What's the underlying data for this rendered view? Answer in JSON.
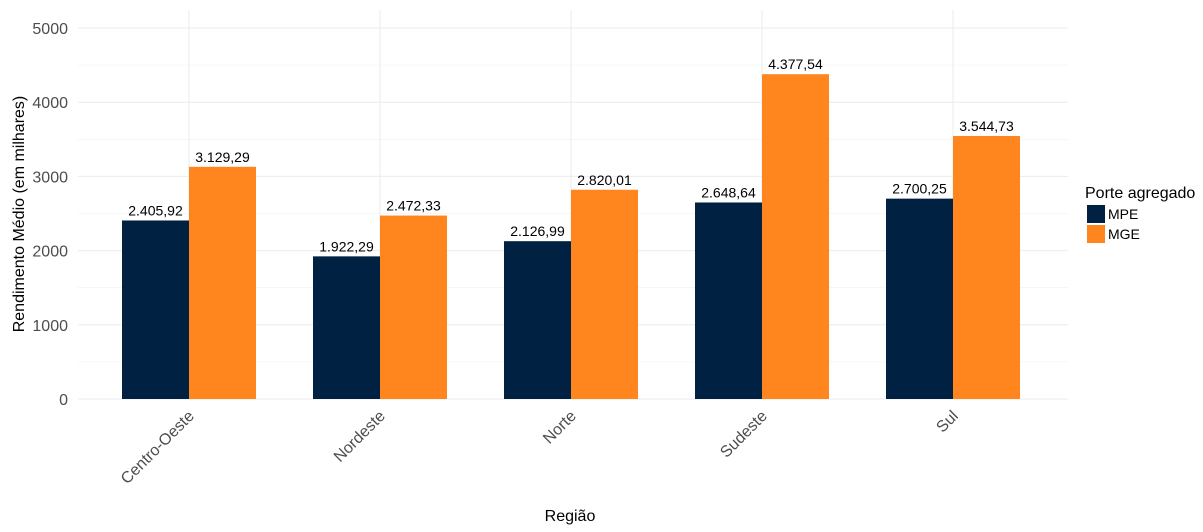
{
  "chart_data": {
    "type": "bar",
    "title": "",
    "xlabel": "Região",
    "ylabel": "Rendimento Médio (em milhares)",
    "ylim": [
      0,
      5000
    ],
    "yticks": [
      0,
      1000,
      2000,
      3000,
      4000,
      5000
    ],
    "grid": true,
    "legend_position": "right",
    "legend_title": "Porte agregado",
    "categories": [
      "Centro-Oeste",
      "Nordeste",
      "Norte",
      "Sudeste",
      "Sul"
    ],
    "series": [
      {
        "name": "MPE",
        "color": "#002142",
        "values": [
          2405.92,
          1922.29,
          2126.99,
          2648.64,
          2700.25
        ],
        "labels": [
          "2.405,92",
          "1.922,29",
          "2.126,99",
          "2.648,64",
          "2.700,25"
        ]
      },
      {
        "name": "MGE",
        "color": "#ff851f",
        "values": [
          3129.29,
          2472.33,
          2820.01,
          4377.54,
          3544.73
        ],
        "labels": [
          "3.129,29",
          "2.472,33",
          "2.820,01",
          "4.377,54",
          "3.544,73"
        ]
      }
    ]
  }
}
